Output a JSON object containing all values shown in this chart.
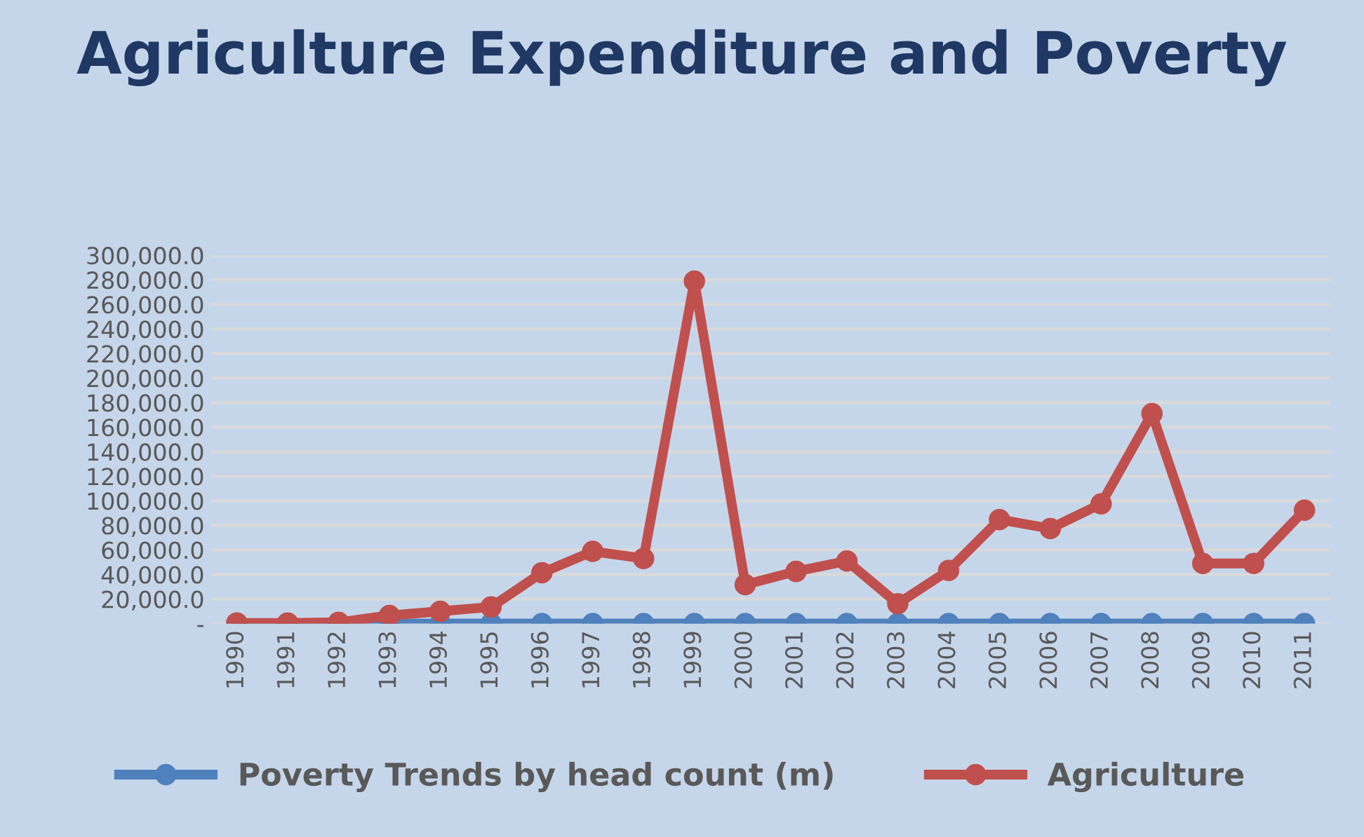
{
  "chart_data": {
    "type": "line",
    "title": "Agriculture Expenditure and Poverty",
    "categories": [
      "1990",
      "1991",
      "1992",
      "1993",
      "1994",
      "1995",
      "1996",
      "1997",
      "1998",
      "1999",
      "2000",
      "2001",
      "2002",
      "2003",
      "2004",
      "2005",
      "2006",
      "2007",
      "2008",
      "2009",
      "2010",
      "2011"
    ],
    "series": [
      {
        "name": "Poverty Trends by head count (m)",
        "color": "#4f81bd",
        "values": [
          0,
          0,
          0,
          0,
          0,
          0,
          0,
          0,
          0,
          0,
          0,
          0,
          0,
          0,
          0,
          0,
          0,
          0,
          0,
          0,
          0,
          0
        ]
      },
      {
        "name": "Agriculture",
        "color": "#c0504d",
        "values": [
          500,
          500,
          1000,
          6600,
          10000,
          13500,
          41400,
          58800,
          53000,
          279000,
          31700,
          42500,
          51000,
          16200,
          43300,
          84700,
          77400,
          97500,
          171000,
          49000,
          49000,
          92400
        ]
      }
    ],
    "ylim": [
      0,
      300000
    ],
    "yticks": [
      {
        "value": 0,
        "label": "-"
      },
      {
        "value": 20000,
        "label": "20,000.0"
      },
      {
        "value": 40000,
        "label": "40,000.0"
      },
      {
        "value": 60000,
        "label": "60,000.0"
      },
      {
        "value": 80000,
        "label": "80,000.0"
      },
      {
        "value": 100000,
        "label": "100,000.0"
      },
      {
        "value": 120000,
        "label": "120,000.0"
      },
      {
        "value": 140000,
        "label": "140,000.0"
      },
      {
        "value": 160000,
        "label": "160,000.0"
      },
      {
        "value": 180000,
        "label": "180,000.0"
      },
      {
        "value": 200000,
        "label": "200,000.0"
      },
      {
        "value": 220000,
        "label": "220,000.0"
      },
      {
        "value": 240000,
        "label": "240,000.0"
      },
      {
        "value": 260000,
        "label": "260,000.0"
      },
      {
        "value": 280000,
        "label": "280,000.0"
      },
      {
        "value": 300000,
        "label": "300,000.0"
      }
    ],
    "grid": "y",
    "legend": "bottom",
    "marker": "circle",
    "line_style": "solid"
  }
}
